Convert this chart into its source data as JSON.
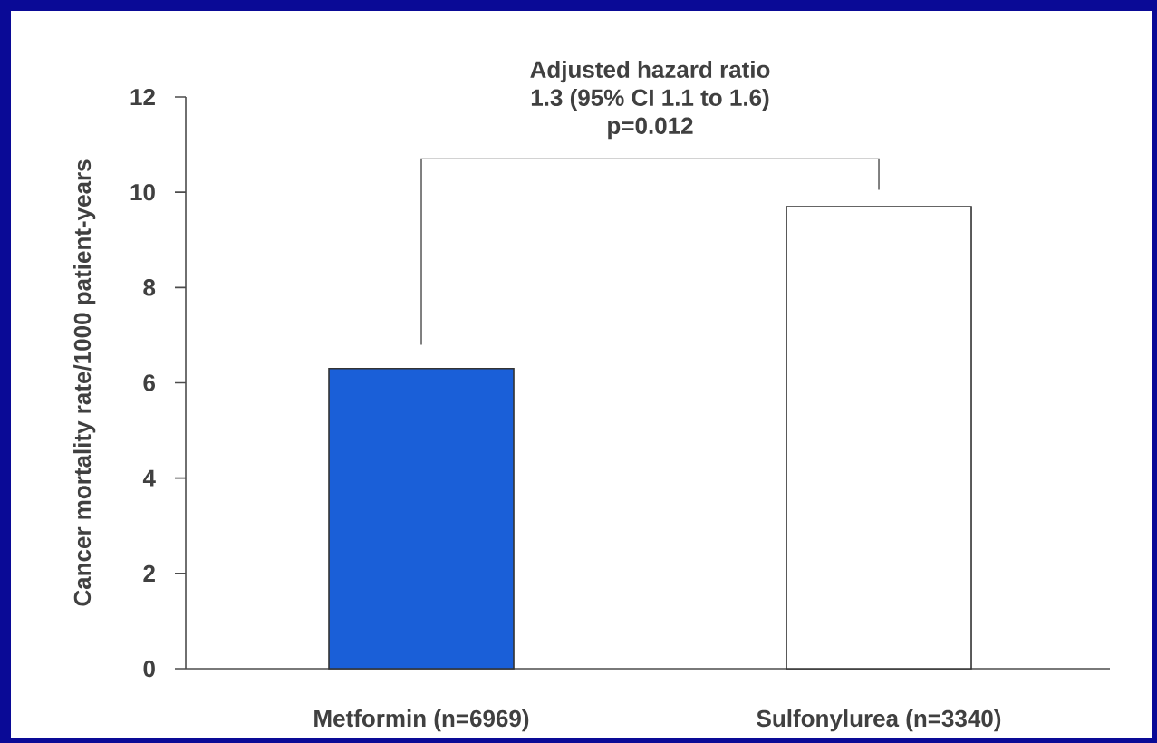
{
  "chart_data": {
    "type": "bar",
    "categories": [
      "Metformin (n=6969)",
      "Sulfonylurea (n=3340)"
    ],
    "values": [
      6.3,
      9.7
    ],
    "colors": [
      "#1a5fd8",
      "#ffffff"
    ],
    "ylabel": "Cancer mortality rate/1000 patient-years",
    "ylim": [
      0,
      12
    ],
    "yticks": [
      0,
      2,
      4,
      6,
      8,
      10,
      12
    ],
    "annotations": [
      "Adjusted hazard ratio",
      "1.3 (95% CI 1.1 to 1.6)",
      "p=0.012"
    ]
  }
}
